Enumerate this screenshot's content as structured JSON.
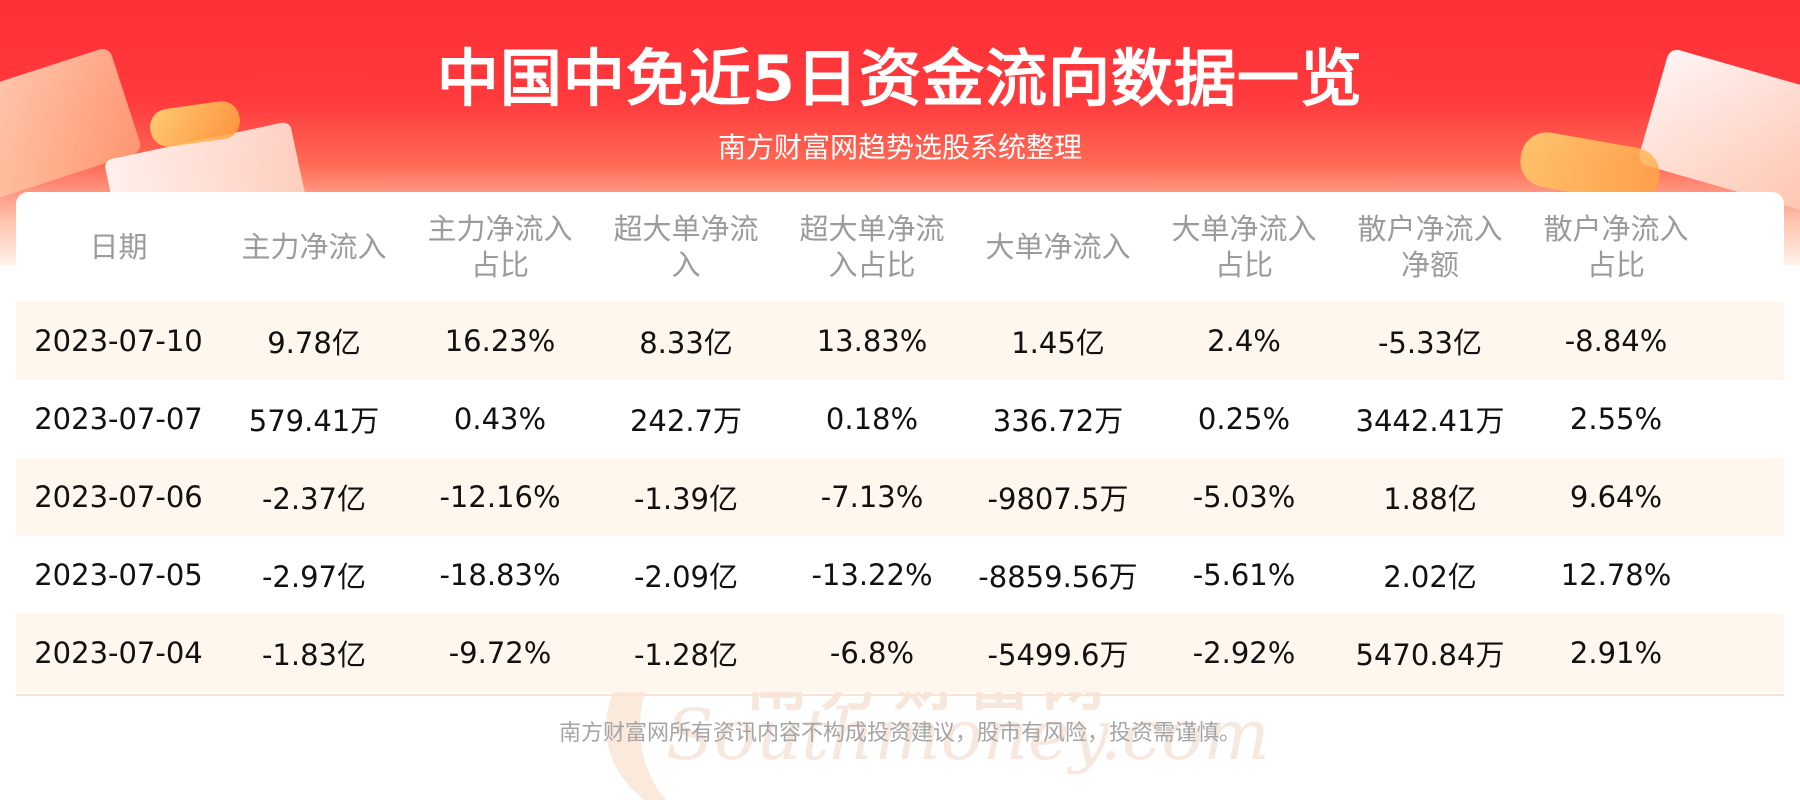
{
  "header": {
    "title": "中国中免近5日资金流向数据一览",
    "subtitle": "南方财富网趋势选股系统整理"
  },
  "table": {
    "columns": [
      "日期",
      "主力净流入",
      "主力净流入\n占比",
      "超大单净流\n入",
      "超大单净流\n入占比",
      "大单净流入",
      "大单净流入\n占比",
      "散户净流入\n净额",
      "散户净流入\n占比"
    ],
    "rows": [
      [
        "2023-07-10",
        "9.78亿",
        "16.23%",
        "8.33亿",
        "13.83%",
        "1.45亿",
        "2.4%",
        "-5.33亿",
        "-8.84%"
      ],
      [
        "2023-07-07",
        "579.41万",
        "0.43%",
        "242.7万",
        "0.18%",
        "336.72万",
        "0.25%",
        "3442.41万",
        "2.55%"
      ],
      [
        "2023-07-06",
        "-2.37亿",
        "-12.16%",
        "-1.39亿",
        "-7.13%",
        "-9807.5万",
        "-5.03%",
        "1.88亿",
        "9.64%"
      ],
      [
        "2023-07-05",
        "-2.97亿",
        "-18.83%",
        "-2.09亿",
        "-13.22%",
        "-8859.56万",
        "-5.61%",
        "2.02亿",
        "12.78%"
      ],
      [
        "2023-07-04",
        "-1.83亿",
        "-9.72%",
        "-1.28亿",
        "-6.8%",
        "-5499.6万",
        "-2.92%",
        "5470.84万",
        "2.91%"
      ]
    ]
  },
  "watermark": {
    "cn": "南方财富网",
    "en": "Southmoney.com"
  },
  "footer": {
    "disclaimer": "南方财富网所有资讯内容不构成投资建议，股市有风险，投资需谨慎。"
  },
  "colors": {
    "banner_red": "#ff2f36",
    "stripe": "#fff6ee",
    "header_text": "#9b9b9b",
    "footer_text": "#a5a5a5"
  }
}
